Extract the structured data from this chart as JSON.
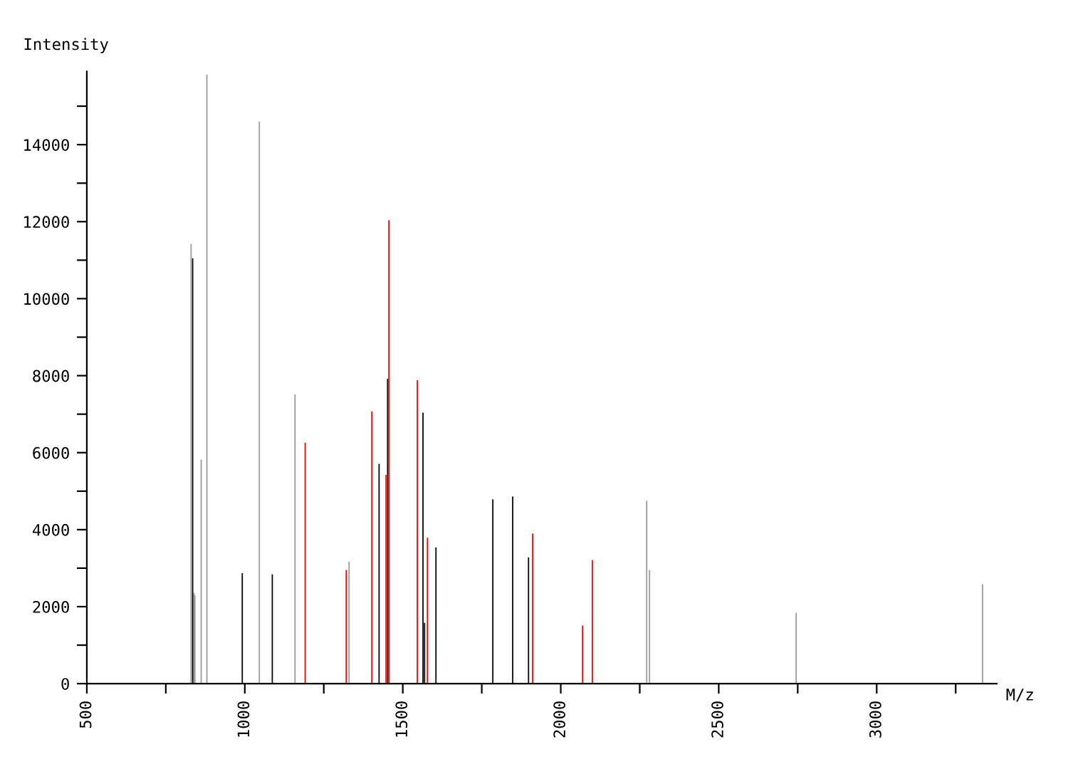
{
  "chart_data": {
    "type": "bar",
    "xlabel": "M/z",
    "ylabel": "Intensity",
    "xlim": [
      500,
      3380
    ],
    "ylim": [
      0,
      15900
    ],
    "xticks": [
      500,
      {
        "value": 750,
        "label": null
      },
      1000,
      {
        "value": 1250,
        "label": null
      },
      1500,
      {
        "value": 1750,
        "label": null
      },
      2000,
      {
        "value": 2250,
        "label": null
      },
      2500,
      {
        "value": 2750,
        "label": null
      },
      3000,
      {
        "value": 3250,
        "label": null
      }
    ],
    "yticks": [
      0,
      {
        "value": 1000,
        "label": null
      },
      2000,
      {
        "value": 3000,
        "label": null
      },
      4000,
      {
        "value": 5000,
        "label": null
      },
      6000,
      {
        "value": 7000,
        "label": null
      },
      8000,
      {
        "value": 9000,
        "label": null
      },
      10000,
      {
        "value": 11000,
        "label": null
      },
      12000,
      {
        "value": 13000,
        "label": null
      },
      14000,
      {
        "value": 15000,
        "label": null
      }
    ],
    "grid": false,
    "legend": false,
    "series": [
      {
        "color": "#999999",
        "x": [
          830,
          839,
          842,
          862,
          880,
          1046,
          1159,
          1330,
          2272,
          2281,
          2745,
          3335
        ],
        "values": [
          11420,
          2360,
          2300,
          5820,
          15820,
          14600,
          7510,
          3170,
          4750,
          2950,
          1840,
          2580
        ]
      },
      {
        "color": "#000000",
        "x": [
          835,
          992,
          1087,
          1425,
          1452,
          1564,
          1569,
          1605,
          1785,
          1848,
          1898
        ],
        "values": [
          11050,
          2870,
          2840,
          5710,
          7920,
          7040,
          1580,
          3540,
          4790,
          4860,
          3280
        ]
      },
      {
        "color": "#ff0000",
        "x": [
          1191,
          1321,
          1402,
          1447,
          1456,
          1546,
          1578,
          1911,
          2069,
          2100
        ],
        "values": [
          6260,
          2950,
          7070,
          5420,
          12040,
          7880,
          3790,
          3900,
          1510,
          3210
        ]
      }
    ]
  }
}
